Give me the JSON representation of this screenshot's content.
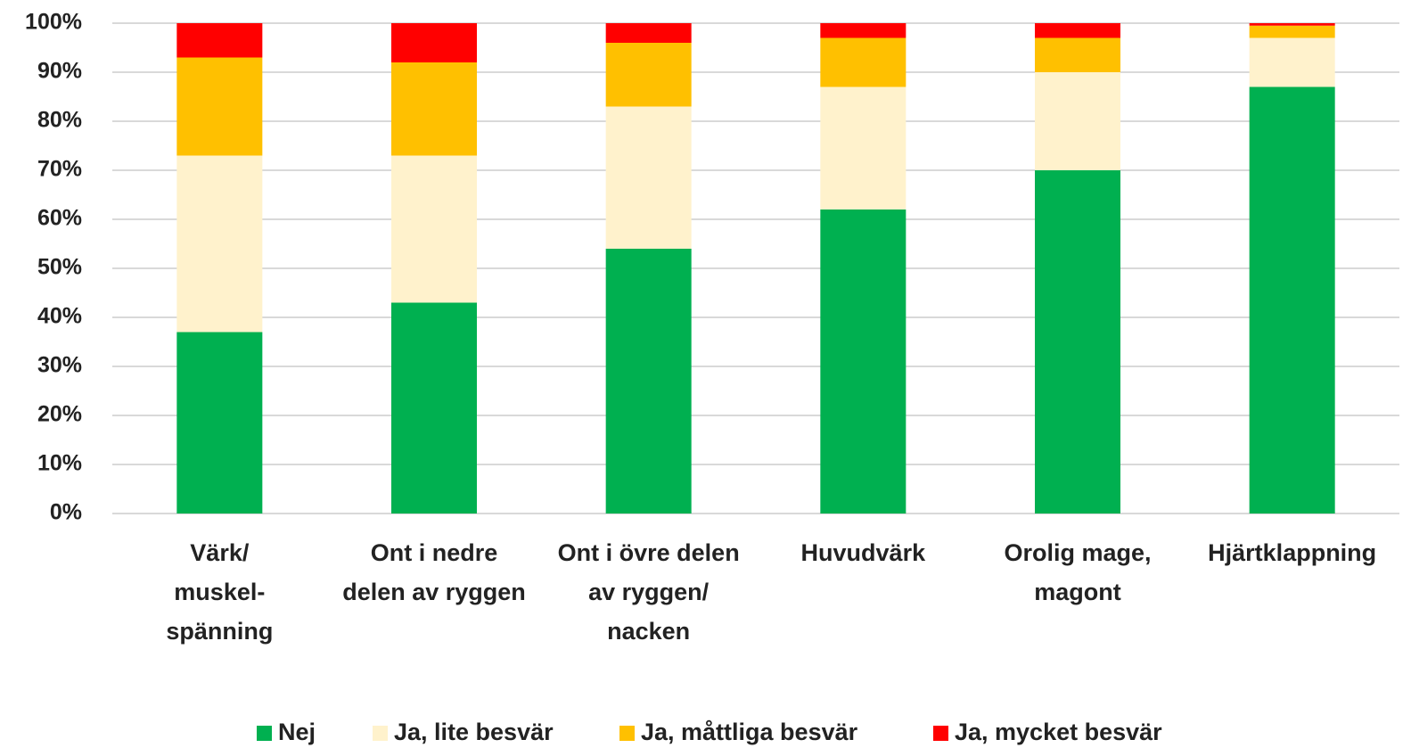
{
  "chart_data": {
    "type": "stacked_bar",
    "categories": [
      "Värk/\nmuskel-\nspänning",
      "Ont i nedre\ndelen av ryggen",
      "Ont i övre delen\nav ryggen/\nnacken",
      "Huvudvärk",
      "Orolig mage,\nmagont",
      "Hjärtklappning"
    ],
    "series": [
      {
        "name": "Nej",
        "color": "#00b050",
        "values": [
          37,
          43,
          54,
          62,
          70,
          87
        ]
      },
      {
        "name": "Ja, lite besvär",
        "color": "#fff2cc",
        "values": [
          36,
          30,
          29,
          25,
          20,
          10
        ]
      },
      {
        "name": "Ja, måttliga besvär",
        "color": "#ffc000",
        "values": [
          20,
          19,
          13,
          10,
          7,
          2.5
        ]
      },
      {
        "name": "Ja, mycket besvär",
        "color": "#ff0000",
        "values": [
          7,
          8,
          4,
          3,
          3,
          0.5
        ]
      }
    ],
    "ylim": [
      0,
      100
    ],
    "yticks": [
      {
        "value": 0,
        "label": "0%"
      },
      {
        "value": 10,
        "label": "10%"
      },
      {
        "value": 20,
        "label": "20%"
      },
      {
        "value": 30,
        "label": "30%"
      },
      {
        "value": 40,
        "label": "40%"
      },
      {
        "value": 50,
        "label": "50%"
      },
      {
        "value": 60,
        "label": "60%"
      },
      {
        "value": 70,
        "label": "70%"
      },
      {
        "value": 80,
        "label": "80%"
      },
      {
        "value": 90,
        "label": "90%"
      },
      {
        "value": 100,
        "label": "100%"
      }
    ],
    "grid": true,
    "legend": "bottom"
  }
}
